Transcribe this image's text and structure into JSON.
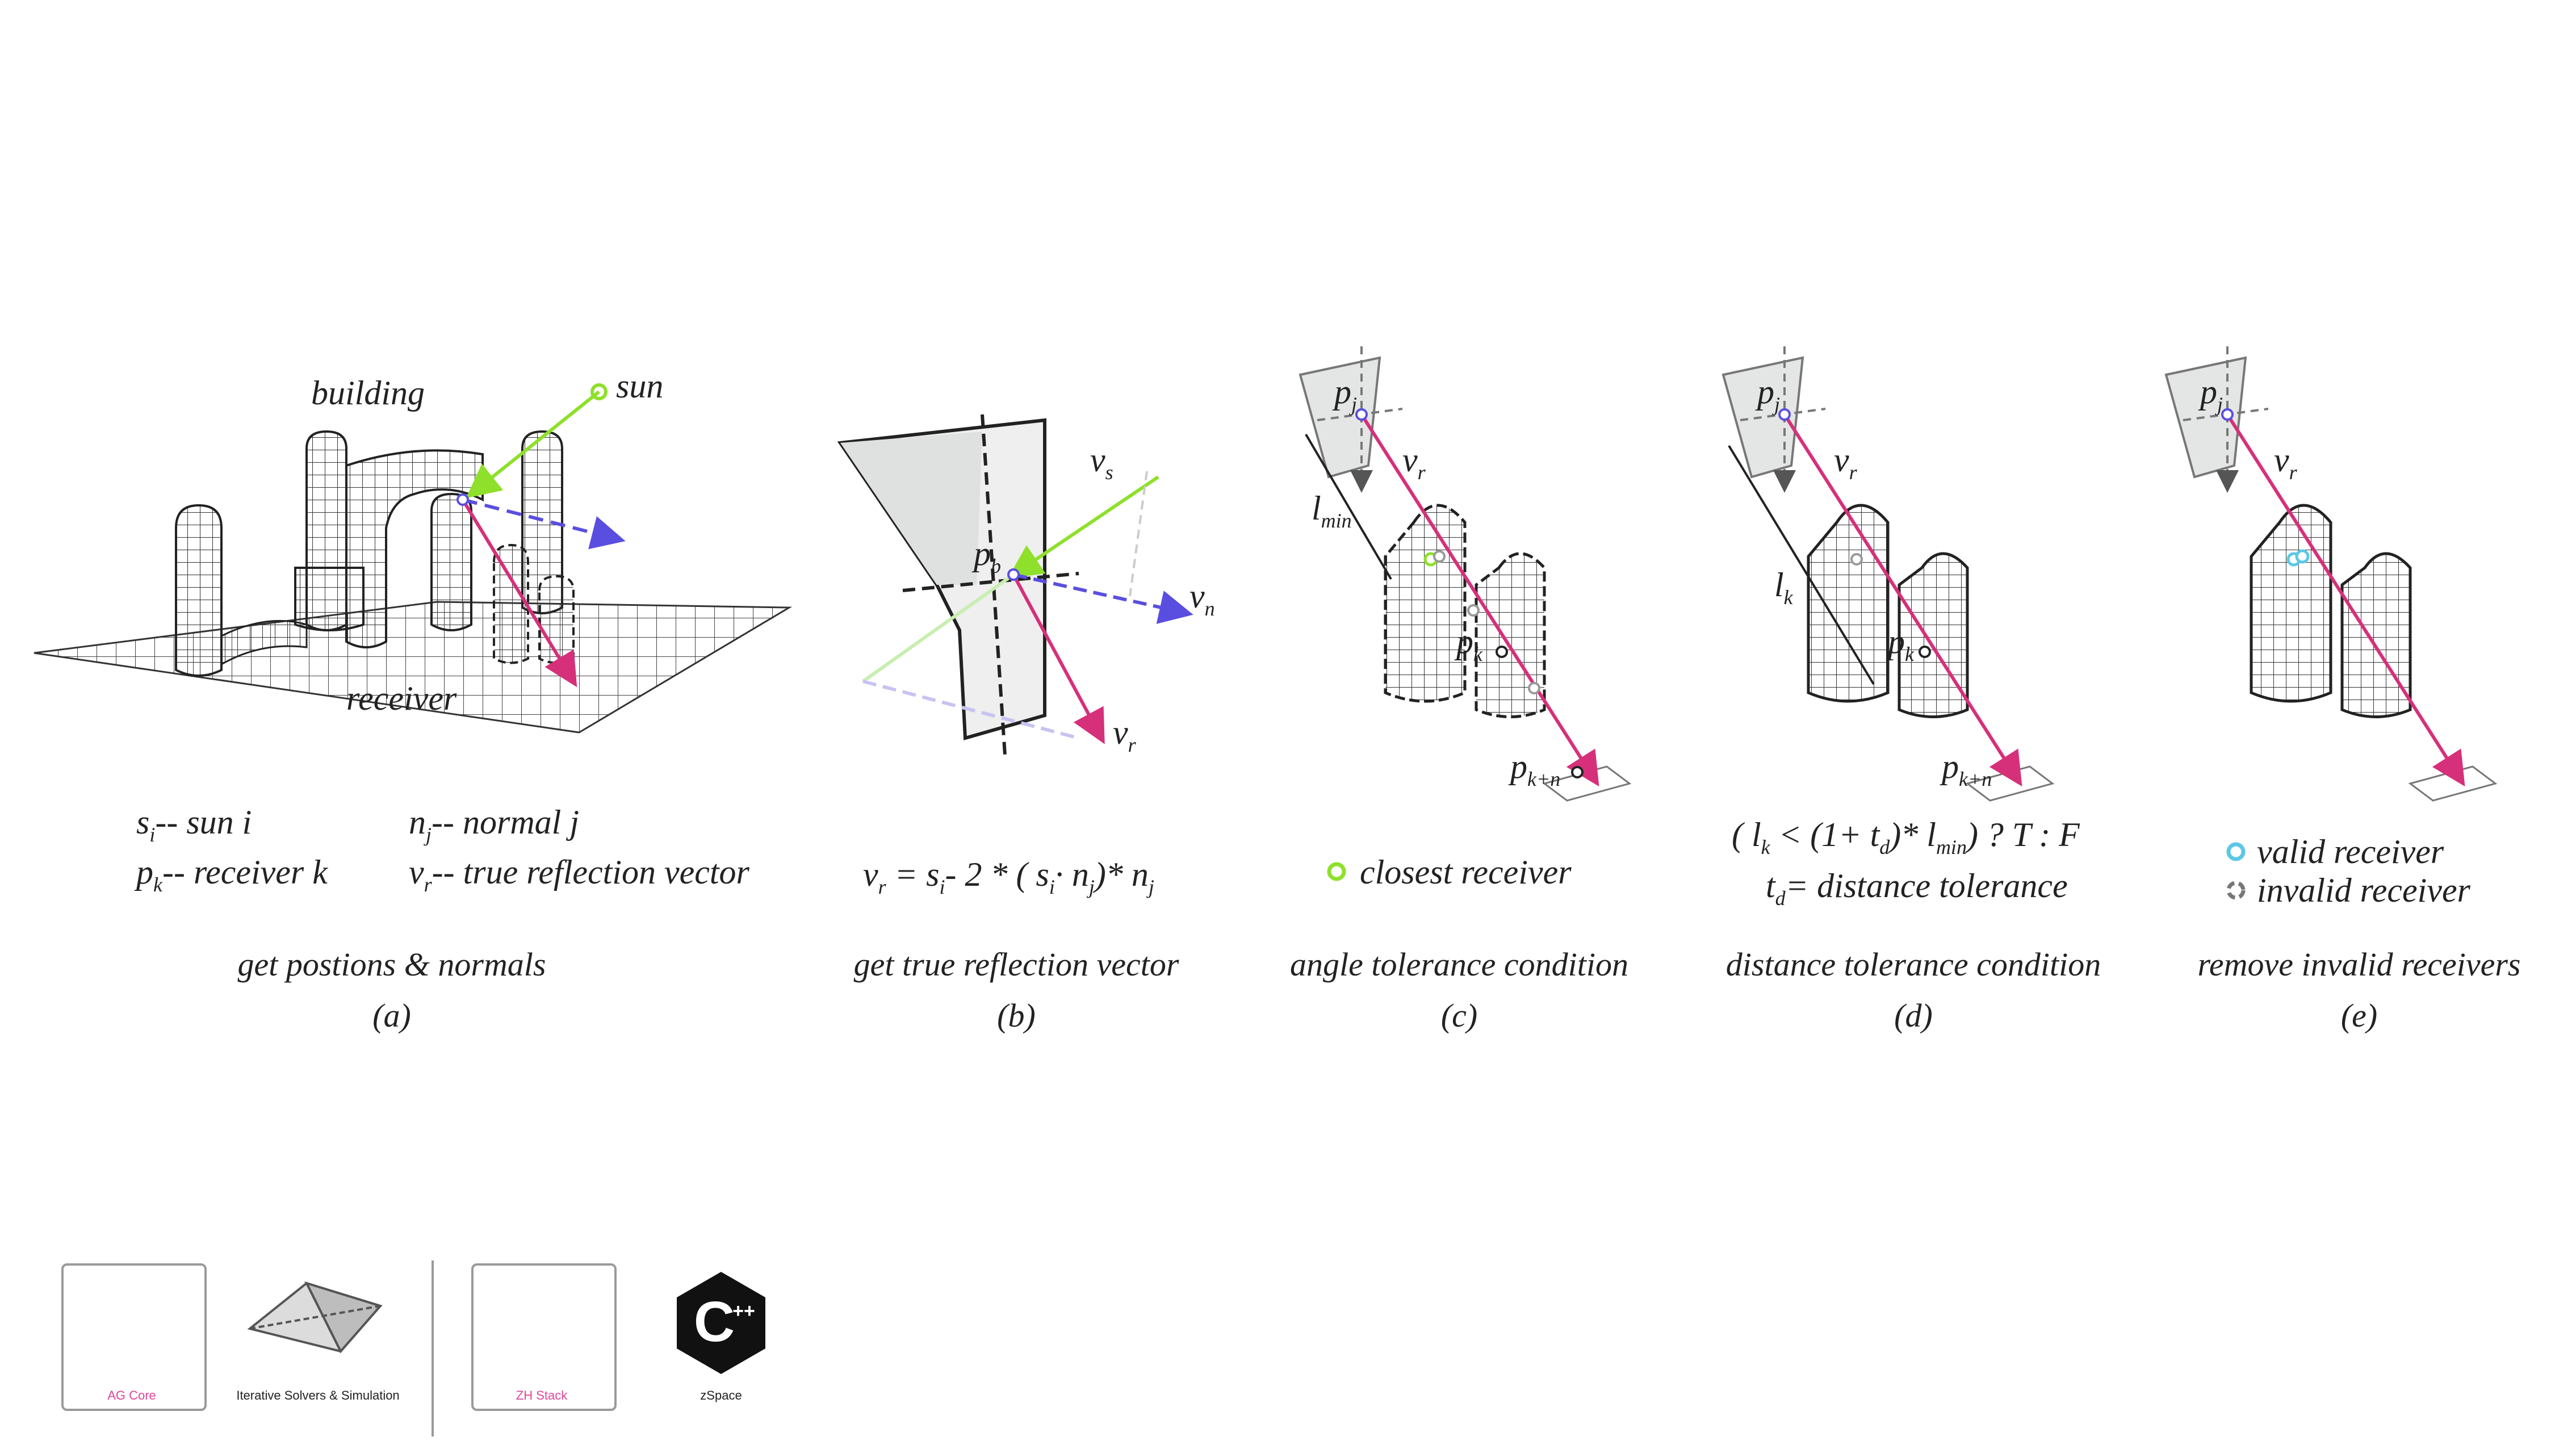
{
  "panels": {
    "a": {
      "caption": "get postions & normals",
      "letter": "(a)",
      "label_building": "building",
      "label_receiver": "receiver",
      "label_sun": "sun",
      "legend": [
        {
          "sym": "s",
          "sub": "i",
          "text": "-- sun i"
        },
        {
          "sym": "n",
          "sub": "j",
          "text": "-- normal j"
        },
        {
          "sym": "p",
          "sub": "k",
          "text": "-- receiver k"
        },
        {
          "sym": "v",
          "sub": "r",
          "text": "-- true reflection vector"
        }
      ]
    },
    "b": {
      "caption": "get true reflection vector",
      "letter": "(b)"
    },
    "c": {
      "caption": "angle tolerance condition",
      "letter": "(c)",
      "legend": "closest receiver"
    },
    "d": {
      "caption": "distance tolerance condition",
      "letter": "(d)",
      "definition": "= distance tolerance"
    },
    "e": {
      "caption": "remove invalid receivers",
      "letter": "(e)",
      "legend_valid": "valid receiver",
      "legend_invalid": "invalid receiver"
    }
  },
  "logos": [
    {
      "label": "AG Core",
      "icon": "database-chip-icon",
      "color": "#e0469a"
    },
    {
      "label": "Iterative Solvers & Simulation",
      "icon": "mesh-icon",
      "color": "#222222"
    },
    {
      "label": "ZH Stack",
      "icon": "layers-icon",
      "color": "#e0469a"
    },
    {
      "label": "zSpace",
      "icon": "cpp-icon",
      "color": "#222222"
    }
  ],
  "colors": {
    "sun": "#8ee02a",
    "normal": "#5a4ee0",
    "reflect": "#d6307a",
    "valid": "#5cc7e6",
    "invalid": "#777777"
  }
}
